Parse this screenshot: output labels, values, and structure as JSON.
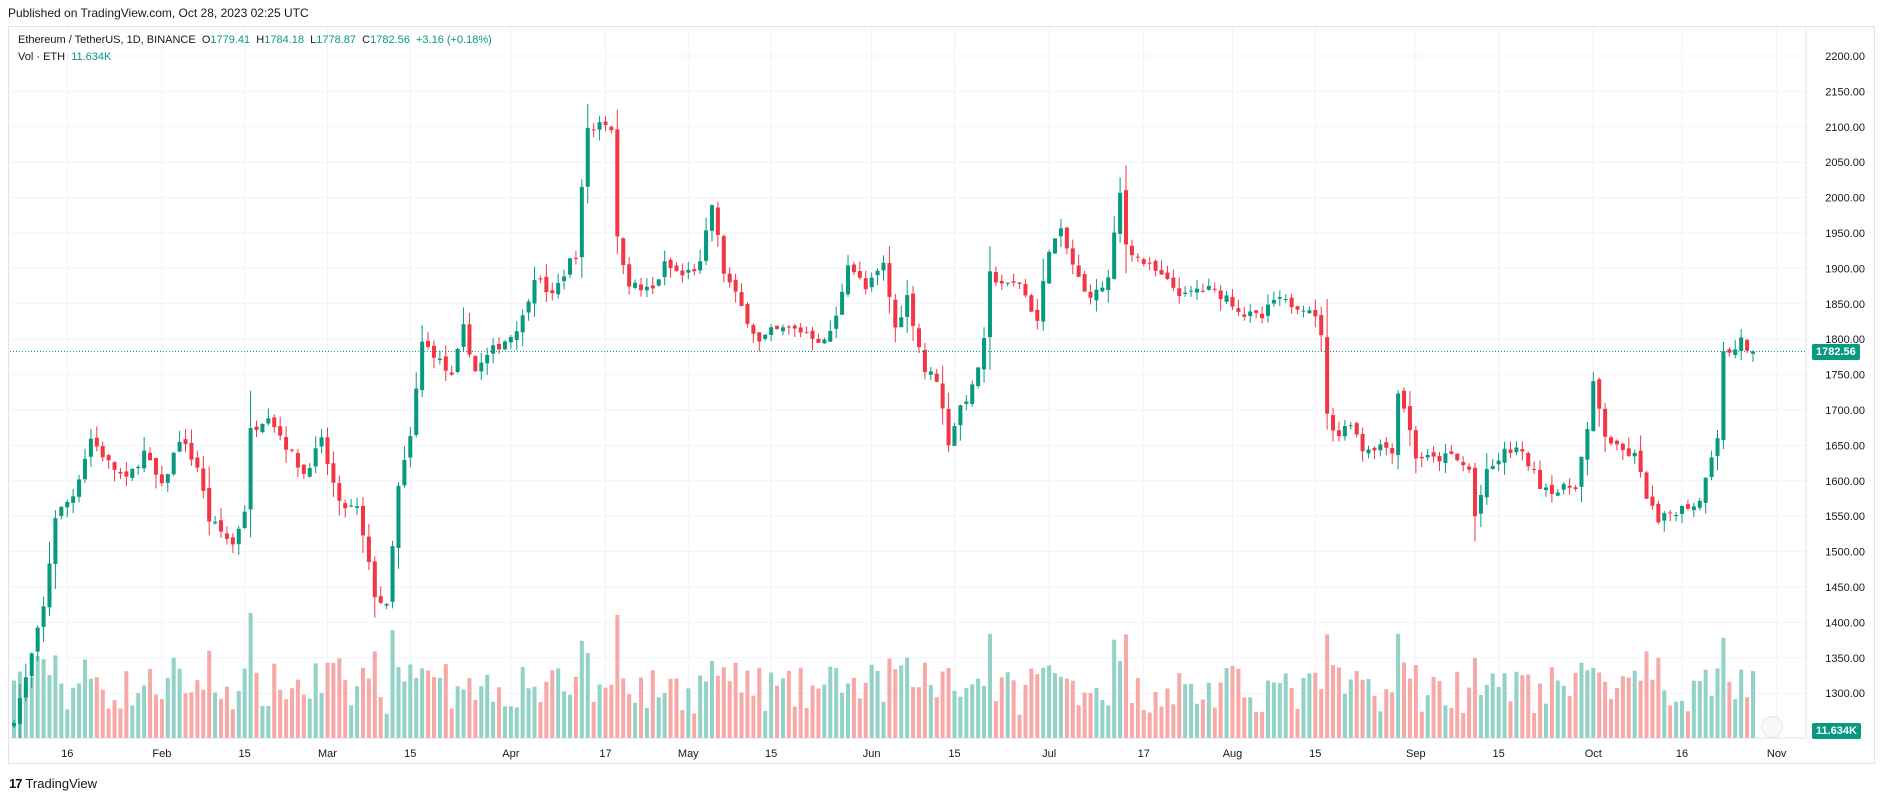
{
  "header": {
    "published": "Published on TradingView.com, Oct 28, 2023 02:25 UTC"
  },
  "legend": {
    "symbol": "Ethereum / TetherUS, 1D, BINANCE",
    "open_label": "O",
    "open": "1779.41",
    "high_label": "H",
    "high": "1784.18",
    "low_label": "L",
    "low": "1778.87",
    "close_label": "C",
    "close": "1782.56",
    "change": "+3.16 (+0.18%)",
    "vol_label": "Vol · ETH",
    "vol_value": "11.634K"
  },
  "price_tag": "1782.56",
  "volume_tag": "11.634K",
  "footer": {
    "logo": "17",
    "brand": "TradingView"
  },
  "colors": {
    "up": "#089981",
    "down": "#f23645",
    "up_vol": "#93d2c6",
    "down_vol": "#f7a9a7",
    "grid": "#f0f3fa"
  },
  "chart_data": {
    "type": "candlestick",
    "y_axis": {
      "min": 1300,
      "max": 2200,
      "step": 50,
      "side": "right",
      "ticks": [
        "2200.00",
        "2150.00",
        "2100.00",
        "2050.00",
        "2000.00",
        "1950.00",
        "1900.00",
        "1850.00",
        "1800.00",
        "1750.00",
        "1700.00",
        "1650.00",
        "1600.00",
        "1550.00",
        "1500.00",
        "1450.00",
        "1400.00",
        "1350.00",
        "1300.00"
      ]
    },
    "x_axis": {
      "start": "2023-01-07",
      "end": "2023-10-28",
      "labels": [
        "16",
        "Feb",
        "15",
        "Mar",
        "15",
        "Apr",
        "17",
        "May",
        "15",
        "Jun",
        "15",
        "Jul",
        "17",
        "Aug",
        "15",
        "Sep",
        "15",
        "Oct",
        "16",
        "Nov"
      ],
      "label_dates": [
        "2023-01-16",
        "2023-02-01",
        "2023-02-15",
        "2023-03-01",
        "2023-03-15",
        "2023-04-01",
        "2023-04-17",
        "2023-05-01",
        "2023-05-15",
        "2023-06-01",
        "2023-06-15",
        "2023-07-01",
        "2023-07-17",
        "2023-08-01",
        "2023-08-15",
        "2023-09-01",
        "2023-09-15",
        "2023-10-01",
        "2023-10-16",
        "2023-11-01"
      ]
    },
    "close_anchors": [
      [
        "2023-01-07",
        1265
      ],
      [
        "2023-01-09",
        1320
      ],
      [
        "2023-01-12",
        1420
      ],
      [
        "2023-01-14",
        1550
      ],
      [
        "2023-01-17",
        1580
      ],
      [
        "2023-01-20",
        1660
      ],
      [
        "2023-01-23",
        1625
      ],
      [
        "2023-01-26",
        1600
      ],
      [
        "2023-01-29",
        1640
      ],
      [
        "2023-02-01",
        1590
      ],
      [
        "2023-02-04",
        1660
      ],
      [
        "2023-02-07",
        1620
      ],
      [
        "2023-02-09",
        1545
      ],
      [
        "2023-02-13",
        1510
      ],
      [
        "2023-02-15",
        1560
      ],
      [
        "2023-02-16",
        1670
      ],
      [
        "2023-02-19",
        1695
      ],
      [
        "2023-02-22",
        1650
      ],
      [
        "2023-02-25",
        1610
      ],
      [
        "2023-02-28",
        1655
      ],
      [
        "2023-03-03",
        1565
      ],
      [
        "2023-03-06",
        1560
      ],
      [
        "2023-03-09",
        1440
      ],
      [
        "2023-03-11",
        1420
      ],
      [
        "2023-03-13",
        1590
      ],
      [
        "2023-03-15",
        1660
      ],
      [
        "2023-03-17",
        1795
      ],
      [
        "2023-03-19",
        1780
      ],
      [
        "2023-03-22",
        1745
      ],
      [
        "2023-03-24",
        1815
      ],
      [
        "2023-03-26",
        1755
      ],
      [
        "2023-03-29",
        1785
      ],
      [
        "2023-04-01",
        1805
      ],
      [
        "2023-04-03",
        1830
      ],
      [
        "2023-04-05",
        1890
      ],
      [
        "2023-04-08",
        1860
      ],
      [
        "2023-04-11",
        1910
      ],
      [
        "2023-04-12",
        1920
      ],
      [
        "2023-04-13",
        2010
      ],
      [
        "2023-04-14",
        2100
      ],
      [
        "2023-04-15",
        2095
      ],
      [
        "2023-04-16",
        2110
      ],
      [
        "2023-04-18",
        2100
      ],
      [
        "2023-04-19",
        1940
      ],
      [
        "2023-04-21",
        1880
      ],
      [
        "2023-04-23",
        1870
      ],
      [
        "2023-04-25",
        1870
      ],
      [
        "2023-04-27",
        1905
      ],
      [
        "2023-04-30",
        1890
      ],
      [
        "2023-05-03",
        1905
      ],
      [
        "2023-05-05",
        1990
      ],
      [
        "2023-05-07",
        1895
      ],
      [
        "2023-05-10",
        1845
      ],
      [
        "2023-05-13",
        1795
      ],
      [
        "2023-05-15",
        1810
      ],
      [
        "2023-05-18",
        1815
      ],
      [
        "2023-05-21",
        1810
      ],
      [
        "2023-05-24",
        1795
      ],
      [
        "2023-05-26",
        1830
      ],
      [
        "2023-05-28",
        1910
      ],
      [
        "2023-05-31",
        1870
      ],
      [
        "2023-06-03",
        1905
      ],
      [
        "2023-06-05",
        1815
      ],
      [
        "2023-06-07",
        1860
      ],
      [
        "2023-06-10",
        1755
      ],
      [
        "2023-06-12",
        1745
      ],
      [
        "2023-06-14",
        1655
      ],
      [
        "2023-06-16",
        1705
      ],
      [
        "2023-06-18",
        1730
      ],
      [
        "2023-06-20",
        1795
      ],
      [
        "2023-06-21",
        1890
      ],
      [
        "2023-06-24",
        1875
      ],
      [
        "2023-06-26",
        1880
      ],
      [
        "2023-06-29",
        1825
      ],
      [
        "2023-07-01",
        1930
      ],
      [
        "2023-07-03",
        1950
      ],
      [
        "2023-07-05",
        1905
      ],
      [
        "2023-07-07",
        1865
      ],
      [
        "2023-07-09",
        1865
      ],
      [
        "2023-07-11",
        1885
      ],
      [
        "2023-07-13",
        2005
      ],
      [
        "2023-07-14",
        1935
      ],
      [
        "2023-07-16",
        1915
      ],
      [
        "2023-07-19",
        1895
      ],
      [
        "2023-07-21",
        1880
      ],
      [
        "2023-07-24",
        1860
      ],
      [
        "2023-07-26",
        1870
      ],
      [
        "2023-07-28",
        1870
      ],
      [
        "2023-07-31",
        1860
      ],
      [
        "2023-08-03",
        1835
      ],
      [
        "2023-08-06",
        1830
      ],
      [
        "2023-08-08",
        1855
      ],
      [
        "2023-08-11",
        1850
      ],
      [
        "2023-08-14",
        1845
      ],
      [
        "2023-08-16",
        1810
      ],
      [
        "2023-08-17",
        1690
      ],
      [
        "2023-08-19",
        1665
      ],
      [
        "2023-08-21",
        1685
      ],
      [
        "2023-08-23",
        1645
      ],
      [
        "2023-08-26",
        1650
      ],
      [
        "2023-08-28",
        1645
      ],
      [
        "2023-08-29",
        1725
      ],
      [
        "2023-08-30",
        1705
      ],
      [
        "2023-09-01",
        1635
      ],
      [
        "2023-09-04",
        1630
      ],
      [
        "2023-09-07",
        1635
      ],
      [
        "2023-09-10",
        1615
      ],
      [
        "2023-09-11",
        1550
      ],
      [
        "2023-09-13",
        1610
      ],
      [
        "2023-09-16",
        1640
      ],
      [
        "2023-09-18",
        1645
      ],
      [
        "2023-09-20",
        1625
      ],
      [
        "2023-09-22",
        1595
      ],
      [
        "2023-09-25",
        1585
      ],
      [
        "2023-09-28",
        1595
      ],
      [
        "2023-09-30",
        1670
      ],
      [
        "2023-10-01",
        1735
      ],
      [
        "2023-10-03",
        1665
      ],
      [
        "2023-10-05",
        1645
      ],
      [
        "2023-10-08",
        1635
      ],
      [
        "2023-10-10",
        1580
      ],
      [
        "2023-10-12",
        1540
      ],
      [
        "2023-10-14",
        1555
      ],
      [
        "2023-10-17",
        1565
      ],
      [
        "2023-10-19",
        1570
      ],
      [
        "2023-10-20",
        1610
      ],
      [
        "2023-10-22",
        1665
      ],
      [
        "2023-10-23",
        1780
      ],
      [
        "2023-10-25",
        1785
      ],
      [
        "2023-10-26",
        1805
      ],
      [
        "2023-10-27",
        1780
      ],
      [
        "2023-10-28",
        1782.56
      ]
    ],
    "last_candle": {
      "date": "2023-10-28",
      "open": 1779.41,
      "high": 1784.18,
      "low": 1778.87,
      "close": 1782.56,
      "volume": "11.634K"
    },
    "grid": true
  }
}
